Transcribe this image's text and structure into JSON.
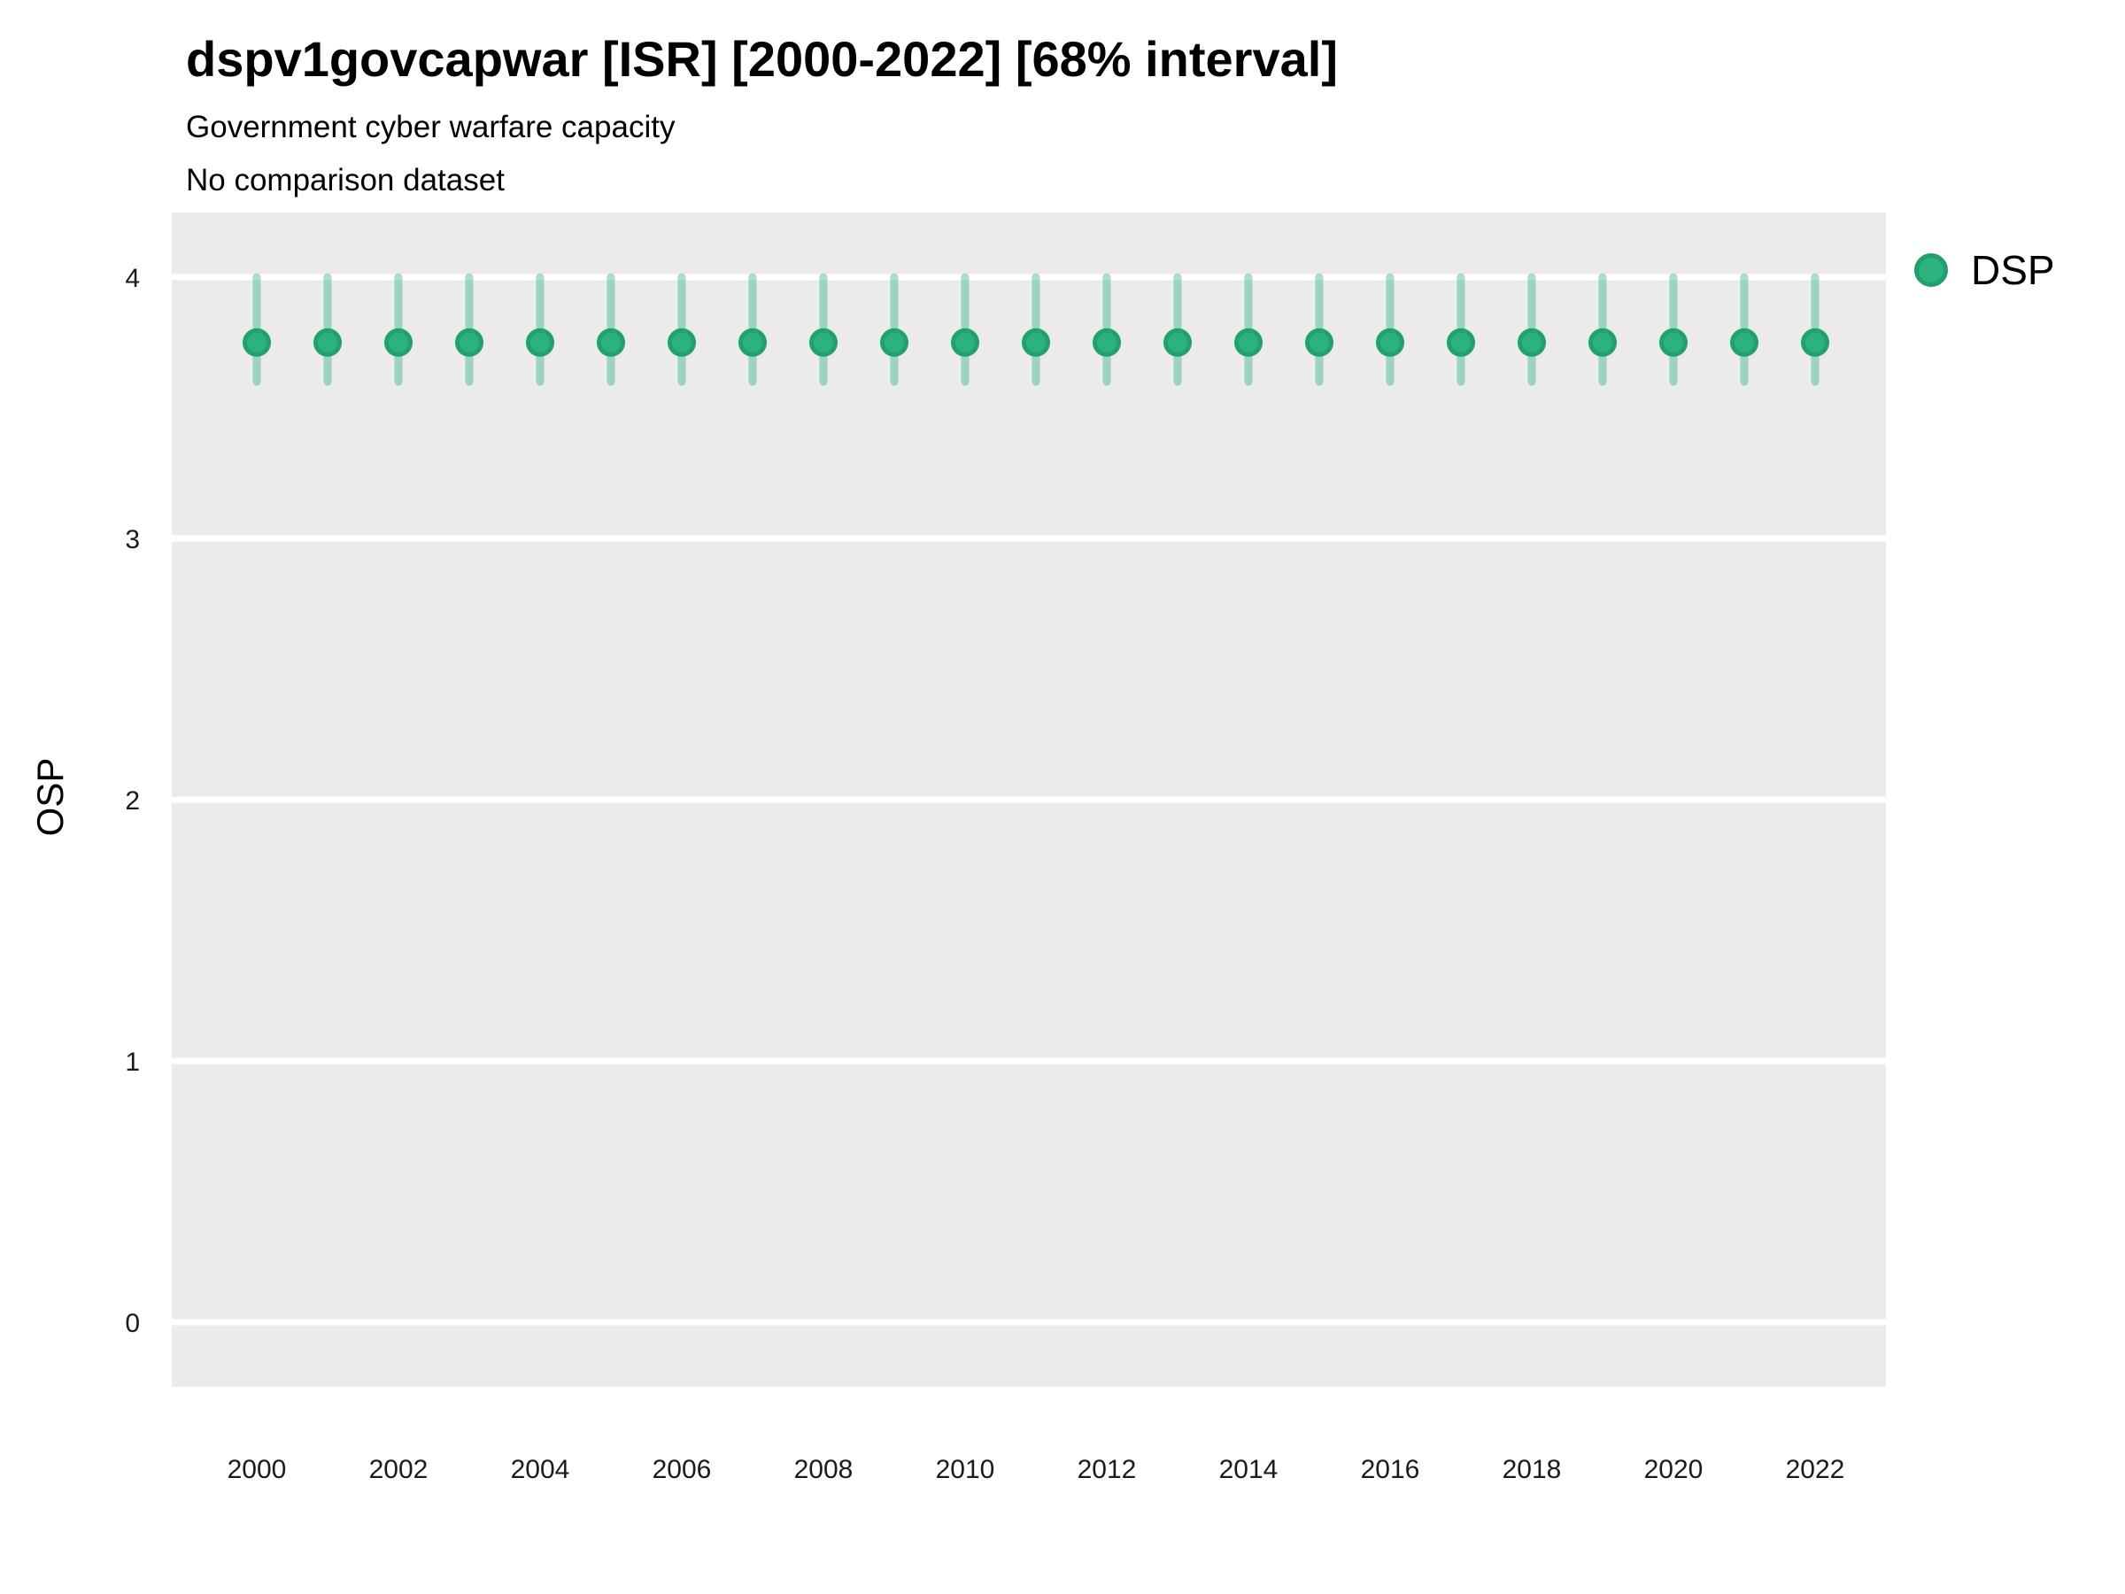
{
  "header": {
    "title": "dspv1govcapwar [ISR] [2000-2022] [68% interval]",
    "subtitle": "Government cyber warfare capacity",
    "subtitle2": "No comparison dataset"
  },
  "axes": {
    "y_label": "OSP",
    "x_label": "",
    "y_ticks": [
      4,
      3,
      2,
      1,
      0
    ],
    "x_ticks": [
      2000,
      2002,
      2004,
      2006,
      2008,
      2010,
      2012,
      2014,
      2016,
      2018,
      2020,
      2022
    ]
  },
  "legend": {
    "label": "DSP",
    "position": "right"
  },
  "chart_data": {
    "type": "scatter",
    "subtype": "pointrange",
    "title": "dspv1govcapwar [ISR] [2000-2022] [68% interval]",
    "subtitle": "Government cyber warfare capacity",
    "subtitle2": "No comparison dataset",
    "xlabel": "",
    "ylabel": "OSP",
    "interval_label": "68% interval",
    "grid": "horizontal-major-only",
    "legend_position": "right",
    "xlim": [
      1998.8,
      2023.0
    ],
    "ylim": [
      -0.2475,
      4.2475
    ],
    "series": [
      {
        "name": "DSP",
        "x": [
          2000,
          2001,
          2002,
          2003,
          2004,
          2005,
          2006,
          2007,
          2008,
          2009,
          2010,
          2011,
          2012,
          2013,
          2014,
          2015,
          2016,
          2017,
          2018,
          2019,
          2020,
          2021,
          2022
        ],
        "y": [
          3.75,
          3.75,
          3.75,
          3.75,
          3.75,
          3.75,
          3.75,
          3.75,
          3.75,
          3.75,
          3.75,
          3.75,
          3.75,
          3.75,
          3.75,
          3.75,
          3.75,
          3.75,
          3.75,
          3.75,
          3.75,
          3.75,
          3.75
        ],
        "y_low": [
          3.6,
          3.6,
          3.6,
          3.6,
          3.6,
          3.6,
          3.6,
          3.6,
          3.6,
          3.6,
          3.6,
          3.6,
          3.6,
          3.6,
          3.6,
          3.6,
          3.6,
          3.6,
          3.6,
          3.6,
          3.6,
          3.6,
          3.6
        ],
        "y_high": [
          4.0,
          4.0,
          4.0,
          4.0,
          4.0,
          4.0,
          4.0,
          4.0,
          4.0,
          4.0,
          4.0,
          4.0,
          4.0,
          4.0,
          4.0,
          4.0,
          4.0,
          4.0,
          4.0,
          4.0,
          4.0,
          4.0,
          4.0
        ]
      }
    ],
    "colors": {
      "point_fill": "#2DB27E",
      "point_stroke": "#20A06E",
      "interval_bar": "rgba(45, 178, 128, 0.42)",
      "panel_background": "#EBEBEB",
      "gridline": "#FFFFFF",
      "tick_text": "#1A1A1A"
    }
  }
}
